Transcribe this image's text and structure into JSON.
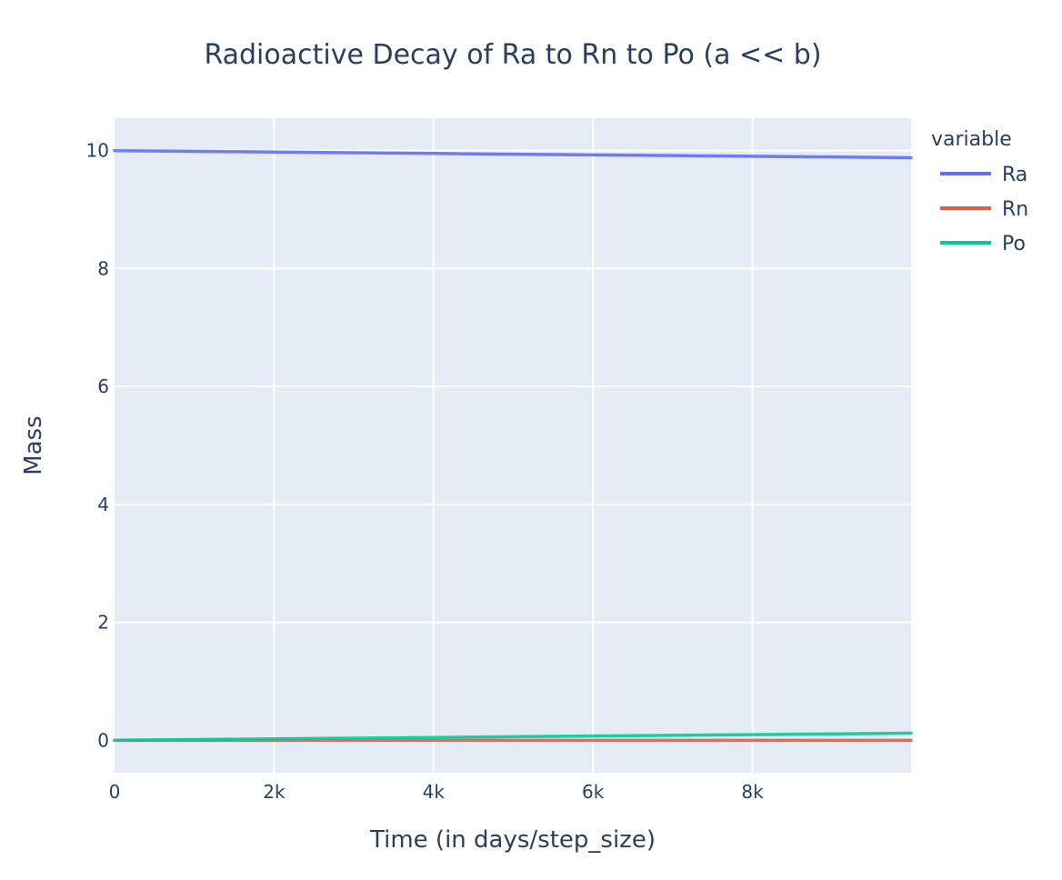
{
  "chart_data": {
    "type": "line",
    "title": "Radioactive Decay of Ra to Rn to Po (a << b)",
    "xlabel": "Time (in days/step_size)",
    "ylabel": "Mass",
    "xlim": [
      0,
      9990
    ],
    "ylim": [
      -0.55,
      10.55
    ],
    "x_ticks": [
      0,
      2000,
      4000,
      6000,
      8000
    ],
    "x_tick_labels": [
      "0",
      "2k",
      "4k",
      "6k",
      "8k"
    ],
    "y_ticks": [
      0,
      2,
      4,
      6,
      8,
      10
    ],
    "y_tick_labels": [
      "0",
      "2",
      "4",
      "6",
      "8",
      "10"
    ],
    "grid": true,
    "legend_title": "variable",
    "legend_position": "right",
    "x": [
      0,
      1000,
      2000,
      3000,
      4000,
      5000,
      6000,
      7000,
      8000,
      9000,
      9990
    ],
    "series": [
      {
        "name": "Ra",
        "color": "#636efa",
        "values": [
          10.0,
          9.988,
          9.976,
          9.964,
          9.952,
          9.94,
          9.928,
          9.916,
          9.904,
          9.892,
          9.88
        ]
      },
      {
        "name": "Rn",
        "color": "#ef553b",
        "values": [
          0.0,
          0.0,
          0.0,
          0.0,
          0.0,
          0.0,
          0.0,
          0.0,
          0.0,
          0.0,
          0.0
        ]
      },
      {
        "name": "Po",
        "color": "#00cc96",
        "values": [
          0.0,
          0.012,
          0.024,
          0.036,
          0.048,
          0.06,
          0.072,
          0.084,
          0.096,
          0.108,
          0.12
        ]
      }
    ]
  }
}
